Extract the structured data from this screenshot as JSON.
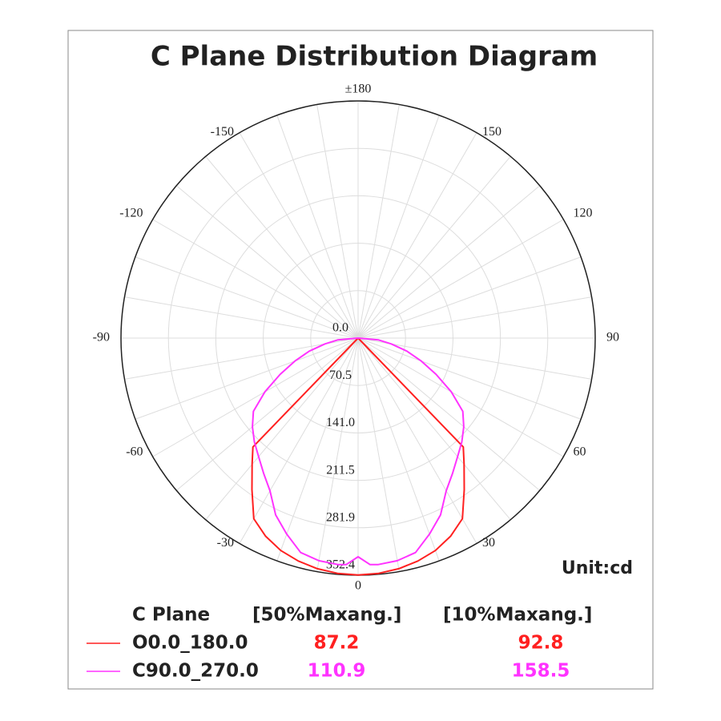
{
  "chart_data": {
    "type": "polar",
    "title": "C Plane Distribution Diagram",
    "unit_label": "Unit:cd",
    "rlim": [
      0,
      352.4
    ],
    "rticks": [
      {
        "value": 0,
        "label": "0.0"
      },
      70.5,
      {
        "value": 141.0,
        "label": "141.0"
      },
      211.5,
      281.9,
      352.4
    ],
    "thetaticks": [
      {
        "value": 180,
        "label": "±180"
      },
      -150,
      -120,
      -90,
      -60,
      -30,
      0,
      30,
      60,
      90,
      120,
      150
    ],
    "theta_grid_step": 10,
    "grid": true,
    "series": [
      {
        "name": "O0.0_180.0",
        "color": "#ff2020",
        "theta": [
          -90,
          -80,
          -70,
          -60,
          -50,
          -45,
          -44,
          -40,
          -35,
          -30,
          -25,
          -20,
          -15,
          -10,
          -5,
          0,
          5,
          10,
          15,
          20,
          25,
          30,
          35,
          40,
          44,
          45,
          50,
          60,
          70,
          80,
          90
        ],
        "values": [
          0,
          0,
          0,
          0,
          0,
          0,
          225,
          245,
          275,
          310,
          325,
          336,
          343,
          348,
          351,
          352,
          351,
          348,
          343,
          336,
          325,
          310,
          275,
          245,
          225,
          0,
          0,
          0,
          0,
          0,
          0
        ]
      },
      {
        "name": "C90.0_270.0",
        "color": "#ff33ff",
        "theta": [
          -90,
          -85,
          -80,
          -75,
          -70,
          -65,
          -60,
          -55,
          -50,
          -45,
          -40,
          -35,
          -30,
          -25,
          -20,
          -15,
          -10,
          -5,
          -3,
          0,
          3,
          5,
          10,
          15,
          20,
          25,
          30,
          35,
          40,
          45,
          50,
          55,
          60,
          65,
          70,
          75,
          80,
          85,
          90
        ],
        "values": [
          0,
          30,
          50,
          75,
          100,
          128,
          160,
          190,
          205,
          218,
          230,
          245,
          262,
          290,
          310,
          330,
          336,
          338,
          337,
          325,
          337,
          338,
          336,
          330,
          310,
          290,
          262,
          245,
          230,
          218,
          205,
          190,
          160,
          128,
          100,
          75,
          50,
          30,
          0
        ]
      }
    ],
    "table": {
      "header": [
        "C Plane",
        "[50%Maxang.]",
        "[10%Maxang.]"
      ],
      "rows": [
        [
          "O0.0_180.0",
          87.2,
          92.8
        ],
        [
          "C90.0_270.0",
          110.9,
          158.5
        ]
      ]
    }
  }
}
